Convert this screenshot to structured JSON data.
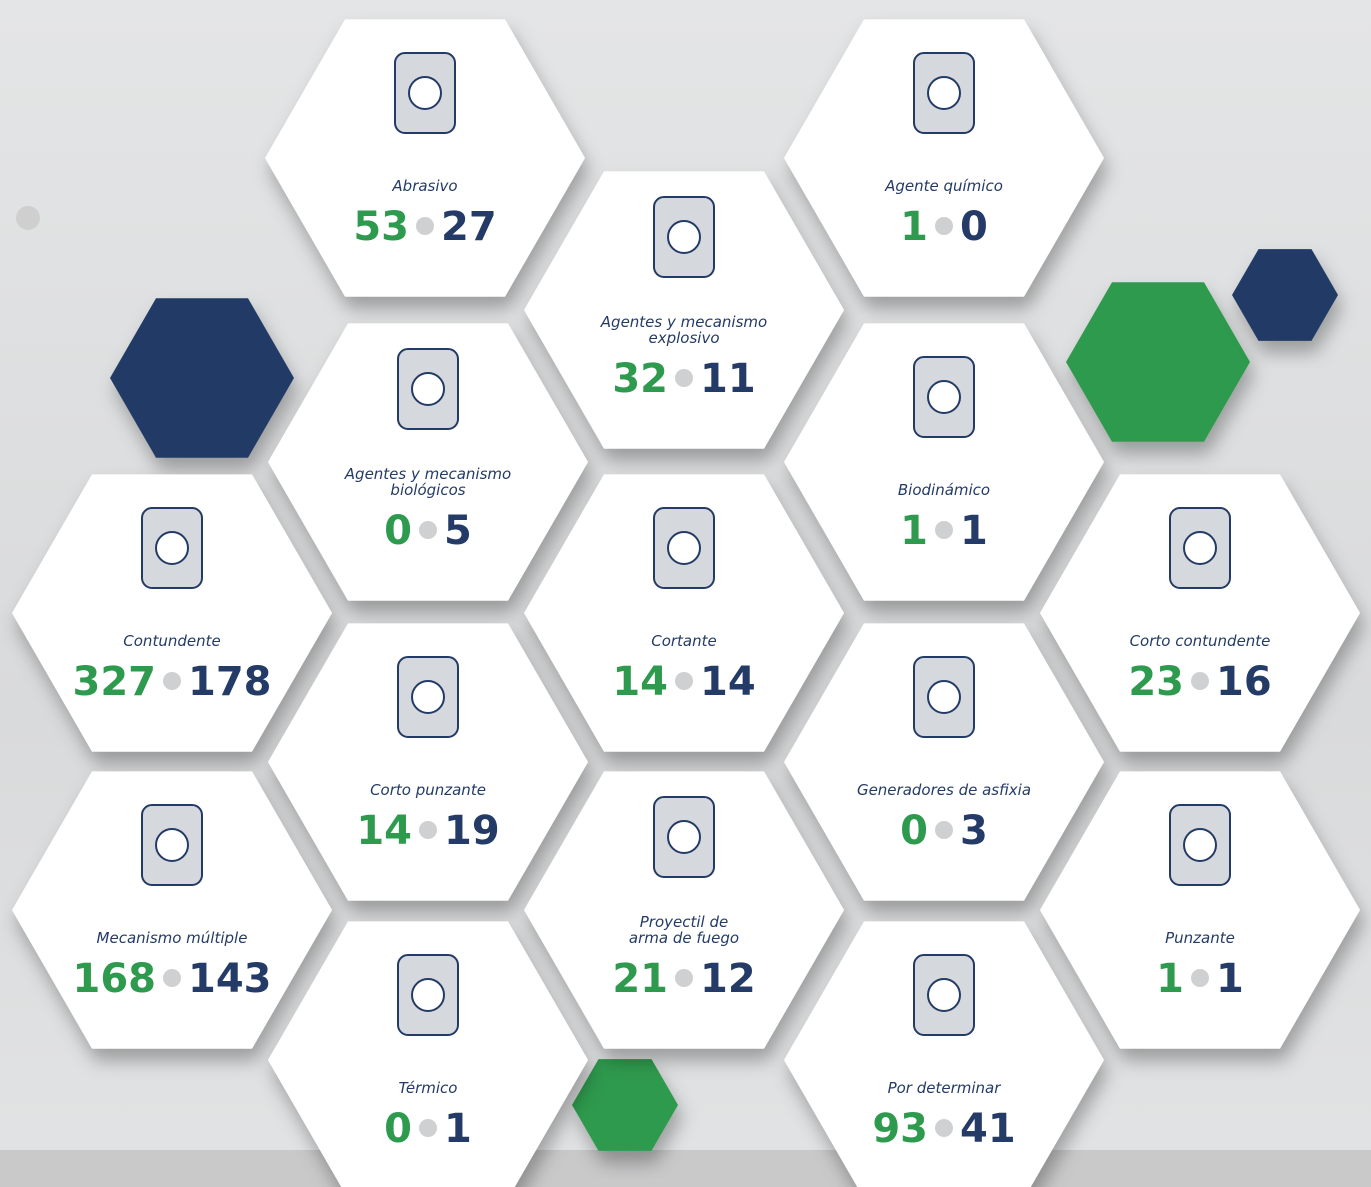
{
  "items": [
    {
      "label": [
        "Abrasivo"
      ],
      "green": 53,
      "blue": 27
    },
    {
      "label": [
        "Agente químico"
      ],
      "green": 1,
      "blue": 0
    },
    {
      "label": [
        "Agentes y mecanismo",
        "explosivo"
      ],
      "green": 32,
      "blue": 11
    },
    {
      "label": [
        "Agentes y mecanismo",
        "biológicos"
      ],
      "green": 0,
      "blue": 5
    },
    {
      "label": [
        "Biodinámico"
      ],
      "green": 1,
      "blue": 1
    },
    {
      "label": [
        "Contundente"
      ],
      "green": 327,
      "blue": 178
    },
    {
      "label": [
        "Cortante"
      ],
      "green": 14,
      "blue": 14
    },
    {
      "label": [
        "Corto contundente"
      ],
      "green": 23,
      "blue": 16
    },
    {
      "label": [
        "Corto punzante"
      ],
      "green": 14,
      "blue": 19
    },
    {
      "label": [
        "Generadores de asfixia"
      ],
      "green": 0,
      "blue": 3
    },
    {
      "label": [
        "Mecanismo múltiple"
      ],
      "green": 168,
      "blue": 143
    },
    {
      "label": [
        "Proyectil de",
        "arma de fuego"
      ],
      "green": 21,
      "blue": 12
    },
    {
      "label": [
        "Punzante"
      ],
      "green": 1,
      "blue": 1
    },
    {
      "label": [
        "Térmico"
      ],
      "green": 0,
      "blue": 1
    },
    {
      "label": [
        "Por determinar"
      ],
      "green": 93,
      "blue": 41
    }
  ]
}
